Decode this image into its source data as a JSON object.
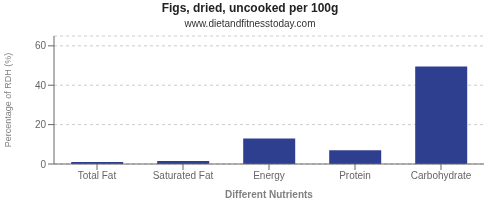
{
  "chart_data": {
    "type": "bar",
    "title": "Figs, dried, uncooked per 100g",
    "subtitle": "www.dietandfitnesstoday.com",
    "xlabel": "Different Nutrients",
    "ylabel": "Percentage of RDH (%)",
    "categories": [
      "Total Fat",
      "Saturated Fat",
      "Energy",
      "Protein",
      "Carbohydrate"
    ],
    "values": [
      1.0,
      1.5,
      13.0,
      7.0,
      49.5
    ],
    "color": "#2e3f8f",
    "ylim": [
      0,
      65
    ],
    "yticks": [
      0,
      20,
      40,
      60
    ],
    "grid": true
  }
}
